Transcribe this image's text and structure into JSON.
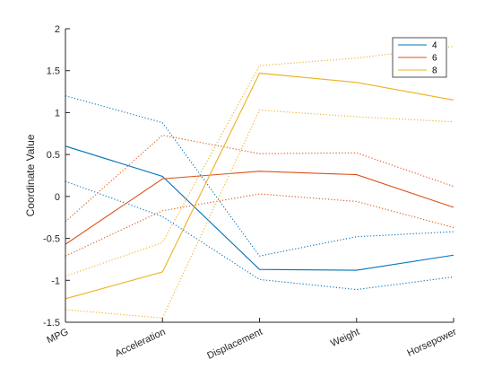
{
  "chart_data": {
    "type": "line",
    "chart_kind": "parallel-coordinates",
    "title": "",
    "xlabel": "",
    "ylabel": "Coordinate Value",
    "categories": [
      "MPG",
      "Acceleration",
      "Displacement",
      "Weight",
      "Horsepower"
    ],
    "ylim": [
      -1.5,
      2
    ],
    "yticks": [
      -1.5,
      -1,
      -0.5,
      0,
      0.5,
      1,
      1.5,
      2
    ],
    "ytick_labels": [
      "-1.5",
      "-1",
      "-0.5",
      "0",
      "0.5",
      "1",
      "1.5",
      "2"
    ],
    "grid": false,
    "legend_position": "top-right",
    "series": [
      {
        "name": "4",
        "color": "#0072BD",
        "median": [
          0.6,
          0.24,
          -0.87,
          -0.88,
          -0.7
        ],
        "upper": [
          1.2,
          0.88,
          -0.71,
          -0.48,
          -0.42
        ],
        "lower": [
          0.18,
          -0.24,
          -0.99,
          -1.11,
          -0.96
        ]
      },
      {
        "name": "6",
        "color": "#D95319",
        "median": [
          -0.57,
          0.21,
          0.3,
          0.26,
          -0.13
        ],
        "upper": [
          -0.3,
          0.73,
          0.51,
          0.52,
          0.12
        ],
        "lower": [
          -0.71,
          -0.17,
          0.03,
          -0.06,
          -0.37
        ]
      },
      {
        "name": "8",
        "color": "#EDB120",
        "median": [
          -1.22,
          -0.9,
          1.47,
          1.36,
          1.15
        ],
        "upper": [
          -0.95,
          -0.55,
          1.56,
          1.65,
          1.79
        ],
        "lower": [
          -1.35,
          -1.45,
          1.03,
          0.95,
          0.89
        ]
      }
    ]
  }
}
